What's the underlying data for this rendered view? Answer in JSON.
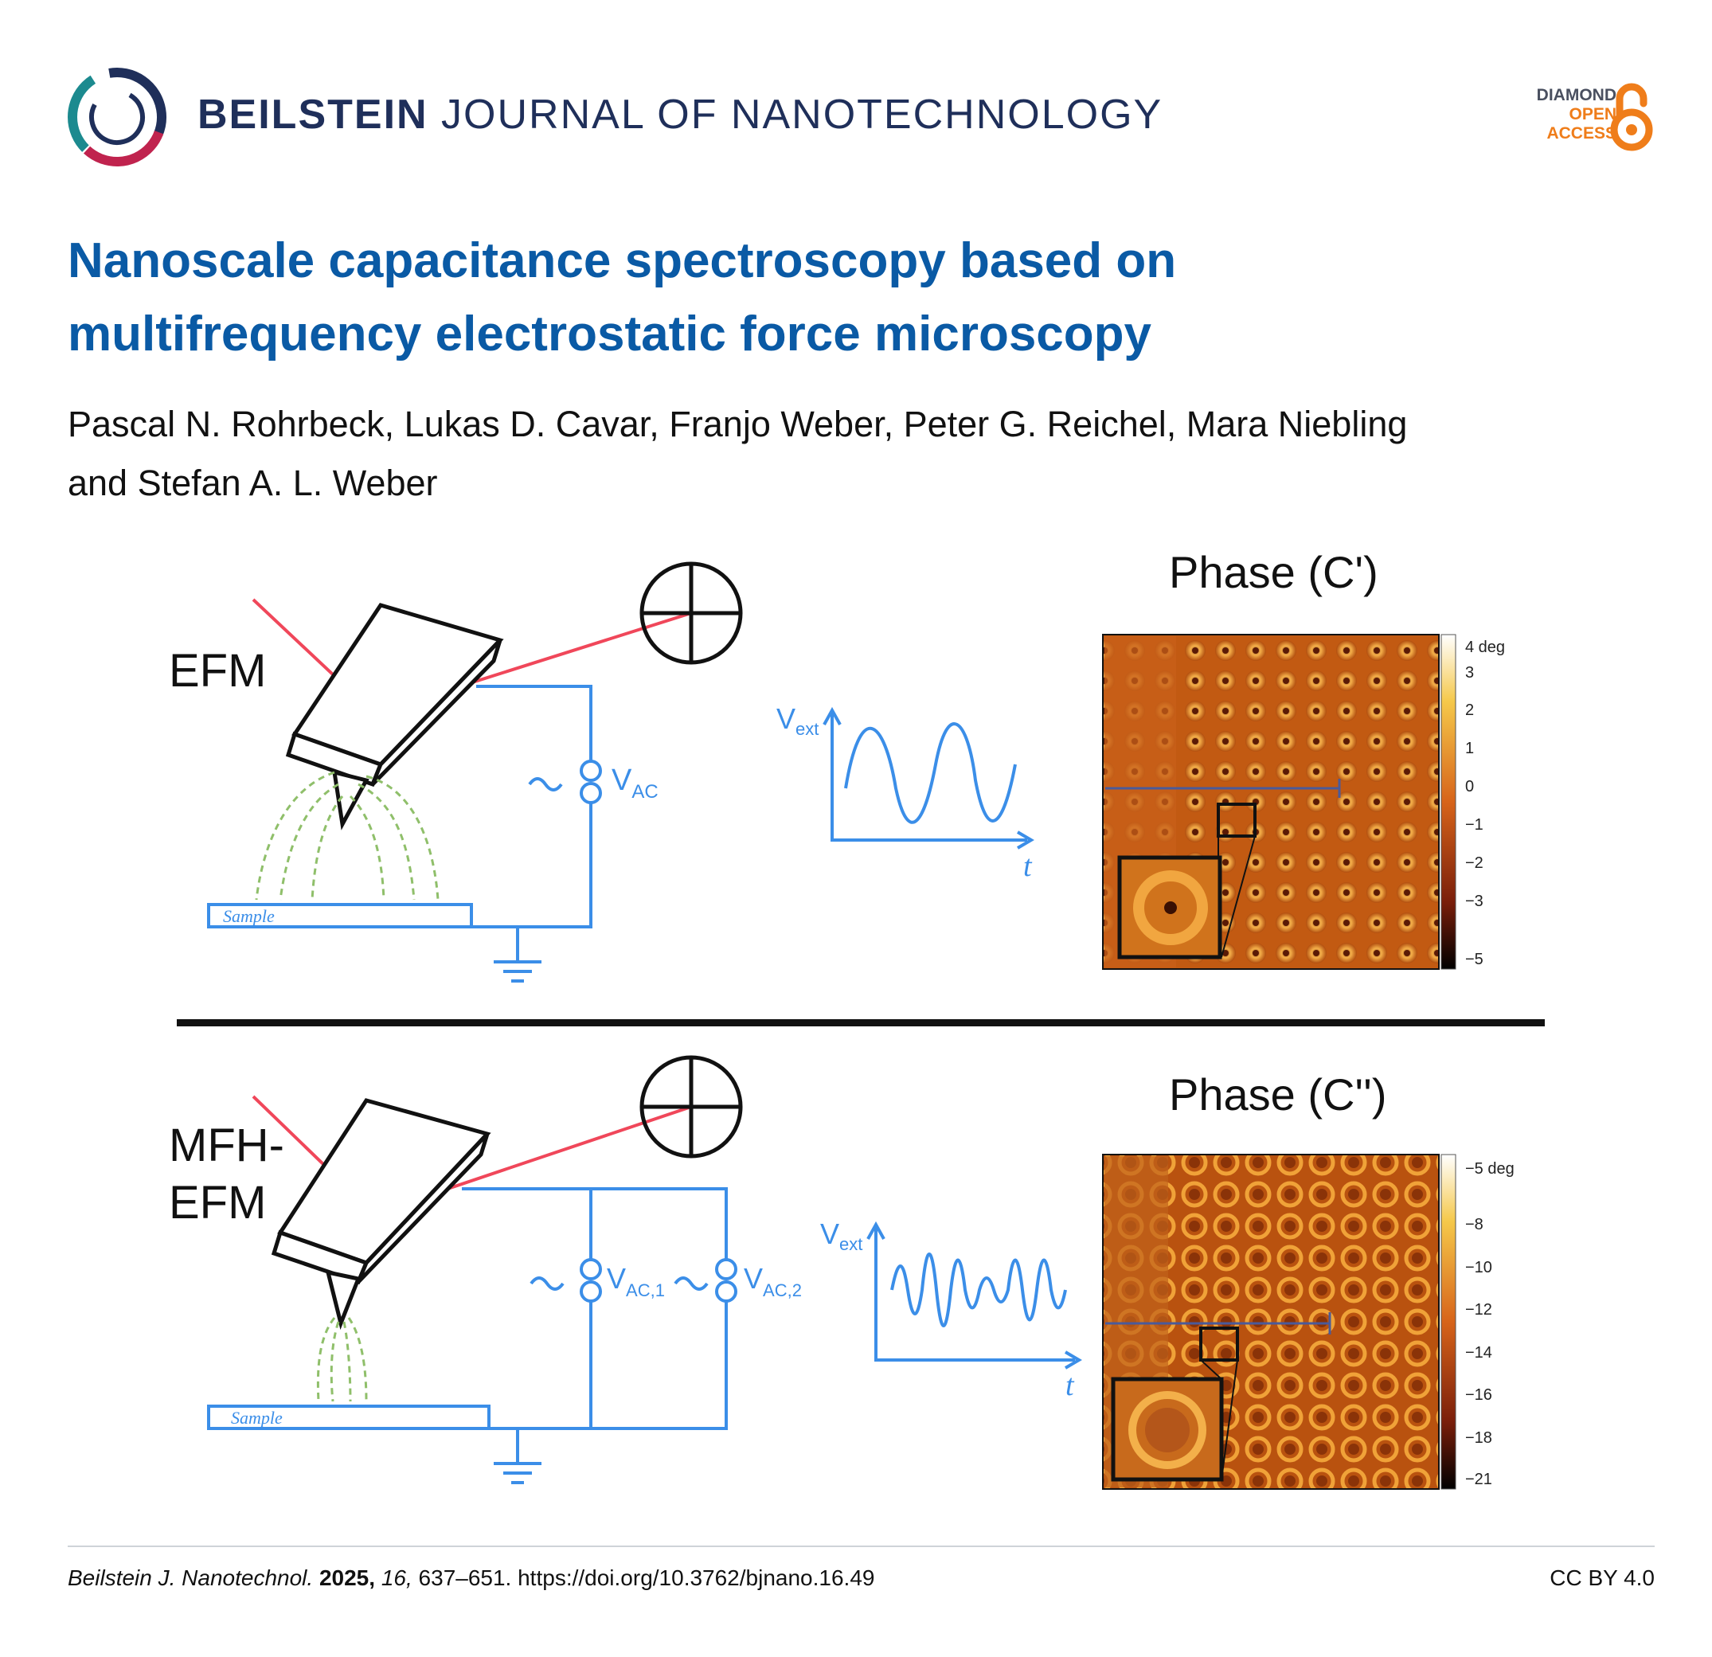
{
  "header": {
    "brand_bold": "BEILSTEIN",
    "brand_rest": "JOURNAL OF NANOTECHNOLOGY",
    "open_access": {
      "line1": "DIAMOND",
      "line2": "OPEN",
      "line3": "ACCESS"
    }
  },
  "article": {
    "title_line1": "Nanoscale capacitance spectroscopy based on",
    "title_line2": "multifrequency electrostatic force microscopy",
    "authors_line1": "Pascal N. Rohrbeck, Lukas D. Cavar, Franjo Weber, Peter G. Reichel, Mara Niebling",
    "authors_line2": "and Stefan A. L. Weber"
  },
  "figure": {
    "top": {
      "method": "EFM",
      "voltage_label": "V",
      "voltage_sub": "AC",
      "sample_label": "Sample",
      "signal_label": "V",
      "signal_sub": "ext",
      "time_label": "t",
      "map_title": "Phase (C')",
      "colorbar_ticks": [
        "4 deg",
        "3",
        "2",
        "1",
        "0",
        "−1",
        "−2",
        "−3",
        "−5"
      ]
    },
    "bottom": {
      "method_line1": "MFH-",
      "method_line2": "EFM",
      "voltage1_label": "V",
      "voltage1_sub": "AC,1",
      "voltage2_label": "V",
      "voltage2_sub": "AC,2",
      "sample_label": "Sample",
      "signal_label": "V",
      "signal_sub": "ext",
      "time_label": "t",
      "map_title": "Phase (C'')",
      "colorbar_ticks": [
        "−5 deg",
        "−8",
        "−10",
        "−12",
        "−14",
        "−16",
        "−18",
        "−21"
      ]
    },
    "colors": {
      "laser": "#f0475a",
      "circuit": "#3b8ee8",
      "field_lines": "#8fbf6a",
      "map_dark": "#5a1a05",
      "map_mid": "#c65a10",
      "map_light": "#f2a33a"
    }
  },
  "footer": {
    "journal": "Beilstein J. Nanotechnol.",
    "year": "2025,",
    "volume": "16,",
    "pages_doi": "637–651. https://doi.org/10.3762/bjnano.16.49",
    "license": "CC BY 4.0"
  }
}
